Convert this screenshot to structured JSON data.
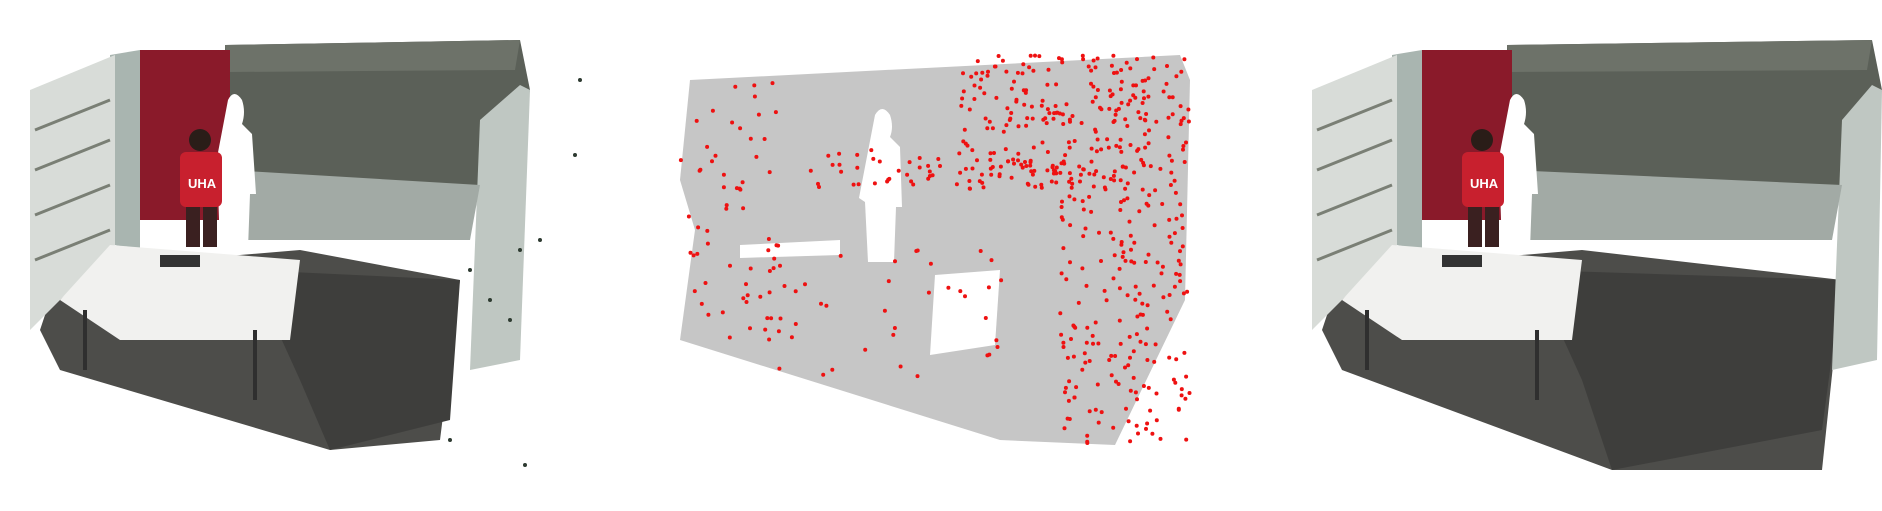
{
  "figure": {
    "panels": [
      {
        "id": "left",
        "description_key": "rgb-point-cloud-input",
        "shirt_text": "UHA"
      },
      {
        "id": "middle",
        "description_key": "gray-point-cloud-with-red-outliers"
      },
      {
        "id": "right",
        "description_key": "rgb-point-cloud-filtered",
        "shirt_text": "UHA"
      }
    ],
    "colors": {
      "background": "#ffffff",
      "wall_dark": "#5b6058",
      "wall_door": "#8a1a2a",
      "wall_light": "#a9b5b0",
      "floor": "#4d4d4a",
      "table": "#f1f1ef",
      "gray_cloud": "#c6c6c6",
      "outlier_red": "#ee1111",
      "shirt": "#c8202e"
    }
  }
}
